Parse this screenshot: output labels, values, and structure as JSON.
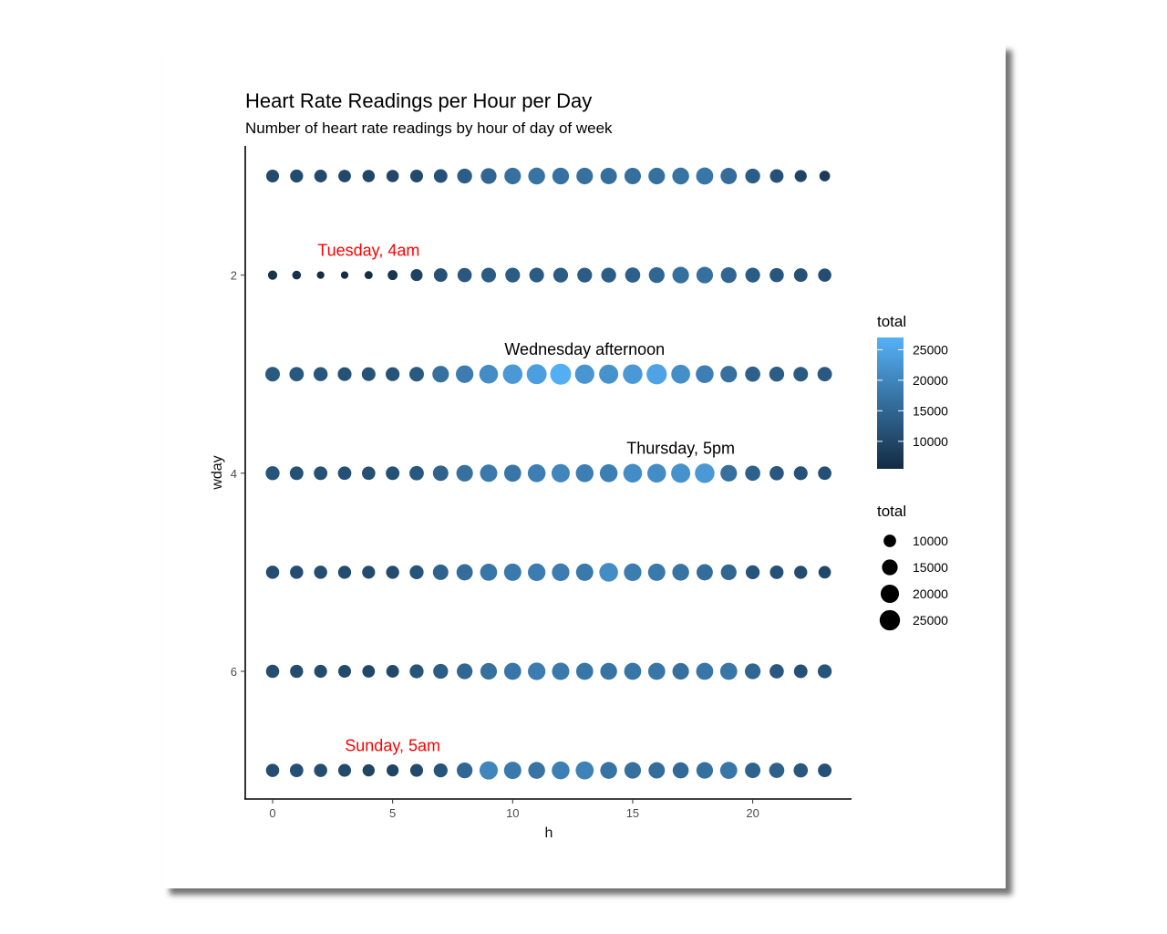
{
  "chart_data": {
    "type": "scatter",
    "title": "Heart Rate Readings per Hour per Day",
    "subtitle": "Number of heart rate readings by hour of day of week",
    "xlabel": "h",
    "ylabel": "wday",
    "xlim": [
      -1,
      24.3
    ],
    "ylim": [
      0.7,
      7.3
    ],
    "x_ticks": [
      0,
      5,
      10,
      15,
      20
    ],
    "y_ticks": [
      2,
      4,
      6
    ],
    "y_reversed": true,
    "grid": false,
    "hours": [
      0,
      1,
      2,
      3,
      4,
      5,
      6,
      7,
      8,
      9,
      10,
      11,
      12,
      13,
      14,
      15,
      16,
      17,
      18,
      19,
      20,
      21,
      22,
      23
    ],
    "series": [
      {
        "wday": 1,
        "values": [
          10500,
          10700,
          10300,
          10100,
          9800,
          9900,
          10400,
          11500,
          13500,
          15000,
          16500,
          17000,
          16800,
          16500,
          16200,
          16400,
          16500,
          17000,
          17500,
          16000,
          13500,
          11500,
          9500,
          8000
        ]
      },
      {
        "wday": 2,
        "values": [
          6800,
          6400,
          5700,
          5700,
          6000,
          7300,
          9400,
          11500,
          12500,
          13200,
          13300,
          13200,
          13400,
          13400,
          13500,
          14000,
          15000,
          16500,
          16500,
          15000,
          13300,
          12400,
          11500,
          11000
        ]
      },
      {
        "wday": 3,
        "values": [
          13000,
          12700,
          12200,
          11800,
          11700,
          11900,
          13000,
          16500,
          18500,
          21000,
          23000,
          24000,
          26500,
          22500,
          22000,
          23000,
          24800,
          21500,
          19000,
          16500,
          14000,
          13500,
          13000,
          12800
        ]
      },
      {
        "wday": 4,
        "values": [
          12000,
          11600,
          11500,
          11300,
          11200,
          11600,
          12700,
          14500,
          16500,
          18000,
          17500,
          19000,
          20000,
          19000,
          19000,
          21000,
          21000,
          22000,
          23000,
          16500,
          14000,
          12500,
          11800,
          11300
        ]
      },
      {
        "wday": 5,
        "values": [
          11000,
          11000,
          10900,
          10800,
          10600,
          10800,
          12000,
          14500,
          16000,
          17500,
          18000,
          18500,
          18500,
          18000,
          21000,
          18500,
          18000,
          17000,
          16000,
          15000,
          12000,
          11500,
          10800,
          10000
        ]
      },
      {
        "wday": 6,
        "values": [
          11000,
          10800,
          10600,
          10400,
          10100,
          10300,
          12000,
          13500,
          15000,
          16500,
          17500,
          18500,
          18000,
          17500,
          17000,
          17500,
          17500,
          16500,
          17500,
          17500,
          15000,
          12500,
          11500,
          12000
        ]
      },
      {
        "wday": 7,
        "values": [
          11000,
          11300,
          11000,
          10500,
          9600,
          9500,
          10500,
          12000,
          15000,
          20000,
          18000,
          17000,
          19000,
          19500,
          17000,
          16500,
          16000,
          15500,
          16500,
          17500,
          14500,
          14000,
          12500,
          11500
        ]
      }
    ],
    "color_scale": {
      "low": "#132B43",
      "high": "#56B1F7",
      "min": 5500,
      "max": 27000
    },
    "annotations": [
      {
        "text": "Tuesday, 4am",
        "x": 4,
        "y": 1.75,
        "color": "#ff0000"
      },
      {
        "text": "Wednesday afternoon",
        "x": 13,
        "y": 2.75,
        "color": "#000000"
      },
      {
        "text": "Thursday, 5pm",
        "x": 17,
        "y": 3.75,
        "color": "#000000"
      },
      {
        "text": "Sunday, 5am",
        "x": 5,
        "y": 6.75,
        "color": "#ff0000"
      }
    ],
    "legend_color": {
      "title": "total",
      "labels": [
        "25000",
        "20000",
        "15000",
        "10000"
      ],
      "values": [
        25000,
        20000,
        15000,
        10000
      ]
    },
    "legend_size": {
      "title": "total",
      "labels": [
        "10000",
        "15000",
        "20000",
        "25000"
      ],
      "values": [
        10000,
        15000,
        20000,
        25000
      ]
    }
  }
}
